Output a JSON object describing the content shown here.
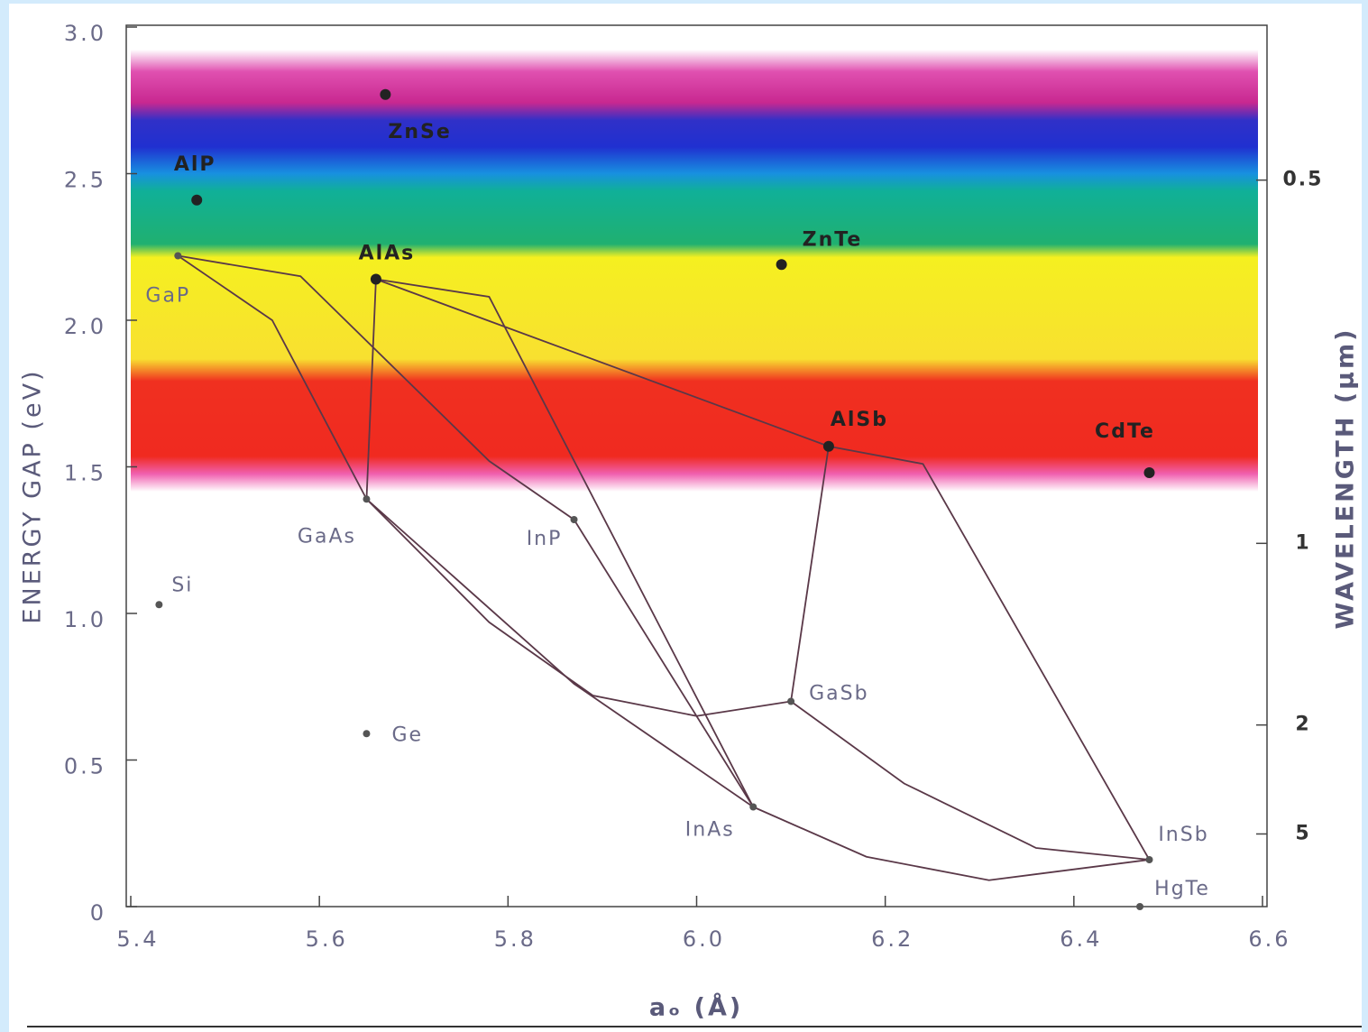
{
  "chart_data": {
    "type": "scatter",
    "x_label": "aₒ (Å)",
    "y_label": "ENERGY GAP (eV)",
    "y2_label": "WAVELENGTH (µm)",
    "xlim": [
      5.4,
      6.6
    ],
    "xticks": [
      5.4,
      5.6,
      5.8,
      {
        "value": 6.0,
        "label": "6.0"
      },
      6.2,
      6.4,
      6.6
    ],
    "ylim": [
      0,
      3.0
    ],
    "yticks": [
      0,
      0.5,
      {
        "value": 1.0,
        "label": "1.0"
      },
      1.5,
      {
        "value": 2.0,
        "label": "2.0"
      },
      2.5,
      {
        "value": 3.0,
        "label": "3.0"
      }
    ],
    "y2scale": "reciprocal",
    "y2lim": [
      null,
      0.413
    ],
    "y2ticks": [
      0.5,
      1,
      2,
      5
    ],
    "points": [
      {
        "name": "ZnSe",
        "x": 5.67,
        "y": 2.77,
        "bold": true
      },
      {
        "name": "AlP",
        "x": 5.47,
        "y": 2.41,
        "bold": true
      },
      {
        "name": "GaP",
        "x": 5.45,
        "y": 2.22,
        "bold": false
      },
      {
        "name": "AlAs",
        "x": 5.66,
        "y": 2.14,
        "bold": true
      },
      {
        "name": "ZnTe",
        "x": 6.09,
        "y": 2.19,
        "bold": true
      },
      {
        "name": "AlSb",
        "x": 6.14,
        "y": 1.57,
        "bold": true
      },
      {
        "name": "CdTe",
        "x": 6.48,
        "y": 1.48,
        "bold": true
      },
      {
        "name": "GaAs",
        "x": 5.65,
        "y": 1.39,
        "bold": false
      },
      {
        "name": "InP",
        "x": 5.87,
        "y": 1.32,
        "bold": false
      },
      {
        "name": "Si",
        "x": 5.43,
        "y": 1.03,
        "bold": false
      },
      {
        "name": "Ge",
        "x": 5.65,
        "y": 0.59,
        "bold": false
      },
      {
        "name": "GaSb",
        "x": 6.1,
        "y": 0.7,
        "bold": false
      },
      {
        "name": "InAs",
        "x": 6.06,
        "y": 0.34,
        "bold": false
      },
      {
        "name": "InSb",
        "x": 6.48,
        "y": 0.16,
        "bold": false
      },
      {
        "name": "HgTe",
        "x": 6.47,
        "y": 0.0,
        "bold": false
      }
    ],
    "curves": [
      {
        "x": [
          5.45,
          5.55,
          5.65
        ],
        "y": [
          2.22,
          2.0,
          1.39
        ]
      },
      {
        "x": [
          5.45,
          5.58,
          5.78,
          5.87
        ],
        "y": [
          2.22,
          2.15,
          1.52,
          1.32
        ]
      },
      {
        "x": [
          5.66,
          5.65
        ],
        "y": [
          2.14,
          1.39
        ]
      },
      {
        "x": [
          5.66,
          5.78,
          6.06
        ],
        "y": [
          2.14,
          2.08,
          0.34
        ]
      },
      {
        "x": [
          5.66,
          6.14
        ],
        "y": [
          2.14,
          1.57
        ]
      },
      {
        "x": [
          5.87,
          6.06
        ],
        "y": [
          1.32,
          0.34
        ]
      },
      {
        "x": [
          5.65,
          5.87,
          6.06
        ],
        "y": [
          1.39,
          0.76,
          0.34
        ]
      },
      {
        "x": [
          5.65,
          5.78,
          5.89,
          6.0,
          6.1
        ],
        "y": [
          1.39,
          0.97,
          0.72,
          0.65,
          0.7
        ]
      },
      {
        "x": [
          6.06,
          6.18,
          6.31,
          6.48
        ],
        "y": [
          0.34,
          0.17,
          0.09,
          0.16
        ]
      },
      {
        "x": [
          6.1,
          6.22,
          6.36,
          6.48
        ],
        "y": [
          0.7,
          0.42,
          0.2,
          0.16
        ]
      },
      {
        "x": [
          6.14,
          6.1
        ],
        "y": [
          1.57,
          0.7
        ]
      },
      {
        "x": [
          6.14,
          6.24,
          6.48
        ],
        "y": [
          1.57,
          1.51,
          0.16
        ]
      }
    ]
  }
}
